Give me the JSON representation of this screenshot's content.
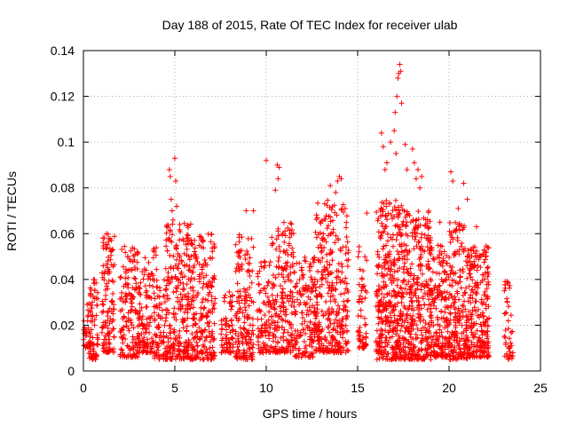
{
  "chart_data": {
    "type": "scatter",
    "title": "Day 188 of 2015, Rate Of TEC Index for receiver ulab",
    "xlabel": "GPS time / hours",
    "ylabel": "ROTI / TECUs",
    "xlim": [
      0,
      25
    ],
    "ylim": [
      0,
      0.14
    ],
    "grid": true,
    "marker": "+",
    "color": "#ff0000",
    "x_ticks": [
      0,
      5,
      10,
      15,
      20,
      25
    ],
    "x_tick_labels": [
      "0",
      "5",
      "10",
      "15",
      "20",
      "25"
    ],
    "y_ticks": [
      0,
      0.02,
      0.04,
      0.06,
      0.08,
      0.1,
      0.12,
      0.14
    ],
    "y_tick_labels": [
      "0",
      "0.02",
      "0.04",
      "0.06",
      "0.08",
      "0.1",
      "0.12",
      "0.14"
    ],
    "clusters": [
      {
        "x_start": 0.0,
        "x_end": 0.3,
        "y_min": 0.01,
        "y_max": 0.03,
        "n": 25
      },
      {
        "x_start": 0.3,
        "x_end": 0.8,
        "y_min": 0.005,
        "y_max": 0.04,
        "n": 80
      },
      {
        "x_start": 1.0,
        "x_end": 1.7,
        "y_min": 0.008,
        "y_max": 0.06,
        "n": 120
      },
      {
        "x_start": 2.0,
        "x_end": 3.0,
        "y_min": 0.006,
        "y_max": 0.055,
        "n": 150
      },
      {
        "x_start": 3.0,
        "x_end": 3.8,
        "y_min": 0.008,
        "y_max": 0.05,
        "n": 110
      },
      {
        "x_start": 3.8,
        "x_end": 4.5,
        "y_min": 0.005,
        "y_max": 0.055,
        "n": 90
      },
      {
        "x_start": 4.5,
        "x_end": 6.0,
        "y_min": 0.005,
        "y_max": 0.065,
        "n": 280
      },
      {
        "x_start": 6.0,
        "x_end": 7.2,
        "y_min": 0.005,
        "y_max": 0.06,
        "n": 200
      },
      {
        "x_start": 7.5,
        "x_end": 8.2,
        "y_min": 0.008,
        "y_max": 0.035,
        "n": 70
      },
      {
        "x_start": 8.3,
        "x_end": 9.3,
        "y_min": 0.005,
        "y_max": 0.06,
        "n": 160
      },
      {
        "x_start": 9.5,
        "x_end": 10.3,
        "y_min": 0.008,
        "y_max": 0.05,
        "n": 100
      },
      {
        "x_start": 10.3,
        "x_end": 11.5,
        "y_min": 0.008,
        "y_max": 0.065,
        "n": 200
      },
      {
        "x_start": 11.5,
        "x_end": 12.7,
        "y_min": 0.006,
        "y_max": 0.05,
        "n": 160
      },
      {
        "x_start": 12.7,
        "x_end": 14.5,
        "y_min": 0.008,
        "y_max": 0.075,
        "n": 320
      },
      {
        "x_start": 15.0,
        "x_end": 15.5,
        "y_min": 0.01,
        "y_max": 0.055,
        "n": 60
      },
      {
        "x_start": 16.0,
        "x_end": 17.5,
        "y_min": 0.005,
        "y_max": 0.075,
        "n": 380
      },
      {
        "x_start": 17.5,
        "x_end": 19.0,
        "y_min": 0.005,
        "y_max": 0.07,
        "n": 340
      },
      {
        "x_start": 19.0,
        "x_end": 20.0,
        "y_min": 0.006,
        "y_max": 0.055,
        "n": 180
      },
      {
        "x_start": 20.0,
        "x_end": 21.0,
        "y_min": 0.005,
        "y_max": 0.065,
        "n": 210
      },
      {
        "x_start": 21.0,
        "x_end": 22.2,
        "y_min": 0.006,
        "y_max": 0.055,
        "n": 240
      },
      {
        "x_start": 23.0,
        "x_end": 23.5,
        "y_min": 0.005,
        "y_max": 0.04,
        "n": 45
      }
    ],
    "outliers": [
      [
        4.7,
        0.088
      ],
      [
        4.75,
        0.085
      ],
      [
        4.8,
        0.075
      ],
      [
        4.85,
        0.07
      ],
      [
        5.0,
        0.093
      ],
      [
        5.05,
        0.083
      ],
      [
        5.1,
        0.072
      ],
      [
        4.9,
        0.066
      ],
      [
        10.0,
        0.092
      ],
      [
        10.6,
        0.09
      ],
      [
        10.65,
        0.084
      ],
      [
        10.7,
        0.089
      ],
      [
        10.5,
        0.079
      ],
      [
        9.3,
        0.07
      ],
      [
        8.9,
        0.07
      ],
      [
        13.5,
        0.081
      ],
      [
        13.9,
        0.083
      ],
      [
        14.0,
        0.085
      ],
      [
        14.1,
        0.084
      ],
      [
        13.8,
        0.078
      ],
      [
        15.5,
        0.069
      ],
      [
        16.3,
        0.104
      ],
      [
        16.4,
        0.098
      ],
      [
        16.5,
        0.088
      ],
      [
        16.6,
        0.091
      ],
      [
        16.8,
        0.1
      ],
      [
        17.0,
        0.105
      ],
      [
        17.05,
        0.113
      ],
      [
        17.15,
        0.12
      ],
      [
        17.2,
        0.128
      ],
      [
        17.25,
        0.13
      ],
      [
        17.3,
        0.134
      ],
      [
        17.35,
        0.131
      ],
      [
        17.4,
        0.117
      ],
      [
        17.1,
        0.095
      ],
      [
        17.6,
        0.099
      ],
      [
        17.7,
        0.088
      ],
      [
        18.0,
        0.097
      ],
      [
        18.1,
        0.091
      ],
      [
        18.2,
        0.084
      ],
      [
        18.3,
        0.088
      ],
      [
        18.5,
        0.085
      ],
      [
        18.4,
        0.08
      ],
      [
        20.1,
        0.087
      ],
      [
        20.2,
        0.083
      ],
      [
        20.8,
        0.082
      ],
      [
        21.0,
        0.075
      ],
      [
        20.5,
        0.071
      ],
      [
        21.5,
        0.063
      ],
      [
        19.5,
        0.065
      ]
    ]
  }
}
